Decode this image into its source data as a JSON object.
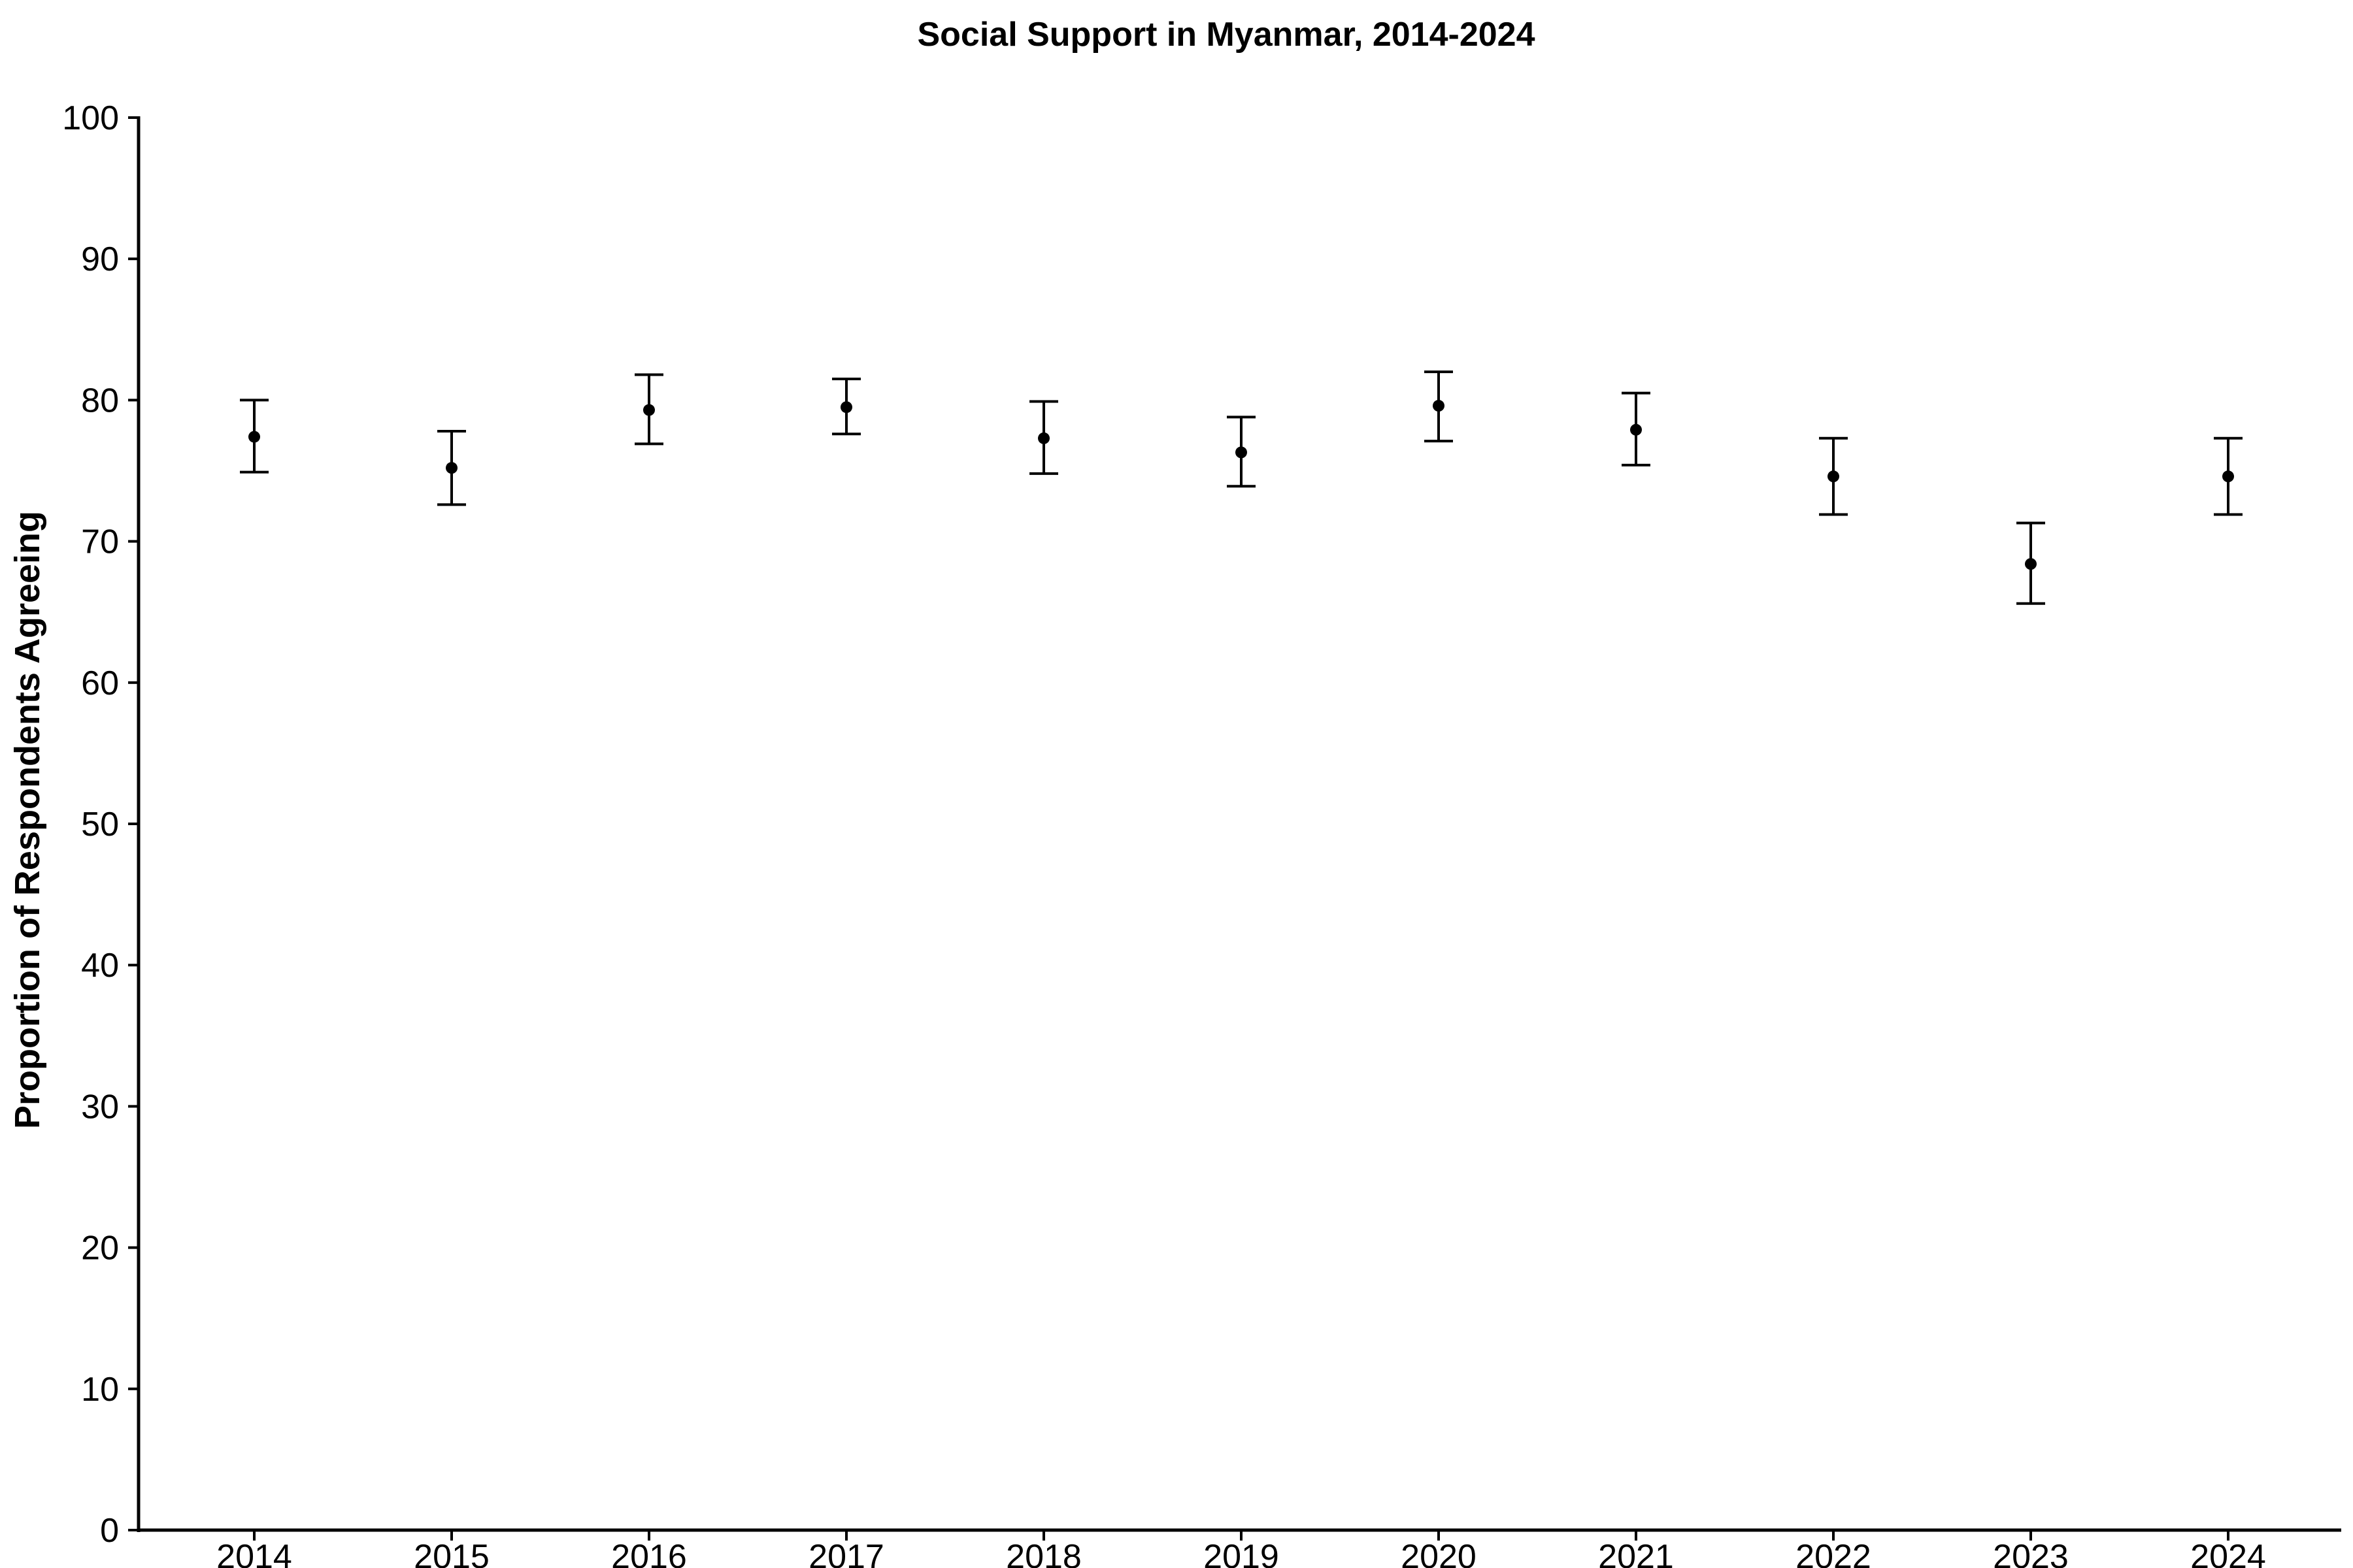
{
  "chart_data": {
    "type": "scatter",
    "title": "Social Support in Myanmar, 2014-2024",
    "xlabel": "",
    "ylabel": "Proportion of Respondents Agreeing",
    "categories": [
      "2014",
      "2015",
      "2016",
      "2017",
      "2018",
      "2019",
      "2020",
      "2021",
      "2022",
      "2023",
      "2024"
    ],
    "series": [
      {
        "values": [
          77.4,
          75.2,
          79.3,
          79.5,
          77.3,
          76.3,
          79.6,
          77.9,
          74.6,
          68.4,
          74.6
        ],
        "lower": [
          74.9,
          72.6,
          76.9,
          77.6,
          74.8,
          73.9,
          77.1,
          75.4,
          71.9,
          65.6,
          71.9
        ],
        "upper": [
          80.0,
          77.8,
          81.8,
          81.5,
          79.9,
          78.8,
          82.0,
          80.5,
          77.3,
          71.3,
          77.3
        ]
      }
    ],
    "ylim": [
      0,
      100
    ],
    "yticks": [
      0,
      10,
      20,
      30,
      40,
      50,
      60,
      70,
      80,
      90,
      100
    ],
    "grid": false,
    "legend": "none"
  }
}
